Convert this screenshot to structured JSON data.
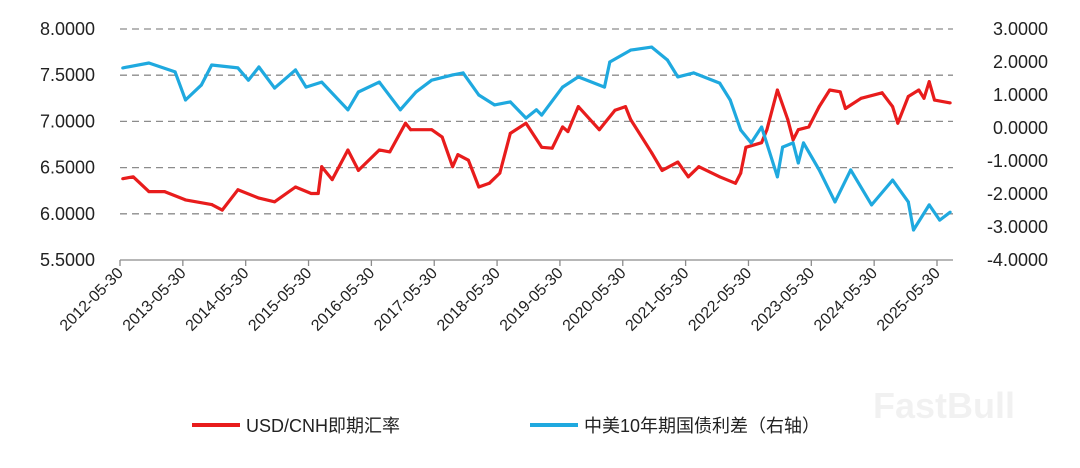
{
  "chart_data": {
    "type": "line",
    "title": "",
    "xlabel": "",
    "ylabel": "",
    "x_ticks": [
      "2012-05-30",
      "2013-05-30",
      "2014-05-30",
      "2015-05-30",
      "2016-05-30",
      "2017-05-30",
      "2018-05-30",
      "2019-05-30",
      "2020-05-30",
      "2021-05-30",
      "2022-05-30",
      "2023-05-30",
      "2024-05-30",
      "2025-05-30"
    ],
    "y_left": {
      "ylim": [
        5.5,
        8.0
      ],
      "ticks": [
        "8.0000",
        "7.5000",
        "7.0000",
        "6.5000",
        "6.0000",
        "5.5000"
      ]
    },
    "y_right": {
      "ylim": [
        -4.0,
        3.0
      ],
      "ticks": [
        "3.0000",
        "2.0000",
        "1.0000",
        "0.0000",
        "-1.0000",
        "-2.0000",
        "-3.0000",
        "-4.0000"
      ]
    },
    "grid": "horizontal dashed",
    "legend_position": "bottom",
    "series": [
      {
        "name": "USD/CNH即期汇率",
        "axis": "left",
        "color": "#e81c1c",
        "points": [
          [
            "2012-06-15",
            6.38
          ],
          [
            "2012-08-15",
            6.4
          ],
          [
            "2012-11-15",
            6.24
          ],
          [
            "2013-02-15",
            6.24
          ],
          [
            "2013-06-15",
            6.15
          ],
          [
            "2013-11-15",
            6.1
          ],
          [
            "2014-01-15",
            6.04
          ],
          [
            "2014-04-15",
            6.26
          ],
          [
            "2014-08-15",
            6.17
          ],
          [
            "2014-11-15",
            6.13
          ],
          [
            "2015-03-15",
            6.29
          ],
          [
            "2015-06-15",
            6.22
          ],
          [
            "2015-07-25",
            6.22
          ],
          [
            "2015-08-15",
            6.51
          ],
          [
            "2015-10-15",
            6.37
          ],
          [
            "2016-01-15",
            6.69
          ],
          [
            "2016-03-15",
            6.47
          ],
          [
            "2016-07-15",
            6.69
          ],
          [
            "2016-09-15",
            6.67
          ],
          [
            "2016-12-15",
            6.98
          ],
          [
            "2017-01-15",
            6.91
          ],
          [
            "2017-05-15",
            6.91
          ],
          [
            "2017-07-15",
            6.83
          ],
          [
            "2017-09-15",
            6.51
          ],
          [
            "2017-10-15",
            6.64
          ],
          [
            "2017-12-15",
            6.58
          ],
          [
            "2018-02-15",
            6.29
          ],
          [
            "2018-04-15",
            6.33
          ],
          [
            "2018-06-15",
            6.44
          ],
          [
            "2018-08-15",
            6.87
          ],
          [
            "2018-11-15",
            6.98
          ],
          [
            "2019-02-15",
            6.72
          ],
          [
            "2019-04-15",
            6.71
          ],
          [
            "2019-06-15",
            6.94
          ],
          [
            "2019-07-15",
            6.89
          ],
          [
            "2019-09-15",
            7.16
          ],
          [
            "2020-01-15",
            6.91
          ],
          [
            "2020-04-15",
            7.12
          ],
          [
            "2020-06-15",
            7.16
          ],
          [
            "2020-07-15",
            7.02
          ],
          [
            "2020-11-15",
            6.66
          ],
          [
            "2021-01-15",
            6.47
          ],
          [
            "2021-04-15",
            6.56
          ],
          [
            "2021-06-15",
            6.4
          ],
          [
            "2021-08-15",
            6.51
          ],
          [
            "2021-12-15",
            6.4
          ],
          [
            "2022-03-15",
            6.33
          ],
          [
            "2022-04-15",
            6.44
          ],
          [
            "2022-05-15",
            6.72
          ],
          [
            "2022-08-15",
            6.77
          ],
          [
            "2022-09-15",
            6.91
          ],
          [
            "2022-11-15",
            7.34
          ],
          [
            "2023-01-15",
            7.02
          ],
          [
            "2023-02-15",
            6.8
          ],
          [
            "2023-03-15",
            6.91
          ],
          [
            "2023-05-15",
            6.94
          ],
          [
            "2023-07-15",
            7.16
          ],
          [
            "2023-09-15",
            7.34
          ],
          [
            "2023-11-15",
            7.32
          ],
          [
            "2023-12-15",
            7.14
          ],
          [
            "2024-03-15",
            7.25
          ],
          [
            "2024-07-15",
            7.31
          ],
          [
            "2024-09-15",
            7.16
          ],
          [
            "2024-10-15",
            6.98
          ],
          [
            "2024-12-15",
            7.27
          ],
          [
            "2025-02-15",
            7.34
          ],
          [
            "2025-03-15",
            7.25
          ],
          [
            "2025-04-15",
            7.43
          ],
          [
            "2025-05-15",
            7.23
          ],
          [
            "2025-08-15",
            7.2
          ]
        ]
      },
      {
        "name": "中美10年期国债利差（右轴）",
        "axis": "right",
        "color": "#1fa9df",
        "points": [
          [
            "2012-06-15",
            1.82
          ],
          [
            "2012-11-15",
            1.97
          ],
          [
            "2013-04-15",
            1.7
          ],
          [
            "2013-06-15",
            0.85
          ],
          [
            "2013-09-15",
            1.3
          ],
          [
            "2013-11-15",
            1.91
          ],
          [
            "2014-04-15",
            1.82
          ],
          [
            "2014-06-15",
            1.45
          ],
          [
            "2014-08-15",
            1.85
          ],
          [
            "2014-11-15",
            1.21
          ],
          [
            "2015-03-15",
            1.76
          ],
          [
            "2015-05-15",
            1.24
          ],
          [
            "2015-08-15",
            1.39
          ],
          [
            "2016-01-15",
            0.55
          ],
          [
            "2016-03-15",
            1.09
          ],
          [
            "2016-07-15",
            1.39
          ],
          [
            "2016-11-15",
            0.55
          ],
          [
            "2017-02-15",
            1.09
          ],
          [
            "2017-05-15",
            1.45
          ],
          [
            "2017-09-15",
            1.61
          ],
          [
            "2017-11-15",
            1.67
          ],
          [
            "2018-02-15",
            1.0
          ],
          [
            "2018-05-15",
            0.7
          ],
          [
            "2018-08-15",
            0.79
          ],
          [
            "2018-11-15",
            0.3
          ],
          [
            "2019-01-15",
            0.55
          ],
          [
            "2019-02-15",
            0.39
          ],
          [
            "2019-06-15",
            1.24
          ],
          [
            "2019-09-15",
            1.55
          ],
          [
            "2020-02-15",
            1.24
          ],
          [
            "2020-03-15",
            2.0
          ],
          [
            "2020-07-15",
            2.36
          ],
          [
            "2020-11-15",
            2.45
          ],
          [
            "2021-02-15",
            2.06
          ],
          [
            "2021-04-15",
            1.55
          ],
          [
            "2021-07-15",
            1.67
          ],
          [
            "2021-12-15",
            1.36
          ],
          [
            "2022-02-15",
            0.85
          ],
          [
            "2022-04-15",
            -0.06
          ],
          [
            "2022-06-15",
            -0.45
          ],
          [
            "2022-08-15",
            0.03
          ],
          [
            "2022-11-15",
            -1.48
          ],
          [
            "2022-12-15",
            -0.58
          ],
          [
            "2023-02-15",
            -0.45
          ],
          [
            "2023-03-15",
            -1.06
          ],
          [
            "2023-04-15",
            -0.45
          ],
          [
            "2023-07-15",
            -1.27
          ],
          [
            "2023-10-15",
            -2.24
          ],
          [
            "2024-01-15",
            -1.27
          ],
          [
            "2024-05-15",
            -2.33
          ],
          [
            "2024-09-15",
            -1.58
          ],
          [
            "2024-12-15",
            -2.24
          ],
          [
            "2025-01-15",
            -3.09
          ],
          [
            "2025-04-15",
            -2.33
          ],
          [
            "2025-06-15",
            -2.79
          ],
          [
            "2025-08-15",
            -2.55
          ]
        ]
      }
    ]
  },
  "watermark": "FastBull"
}
